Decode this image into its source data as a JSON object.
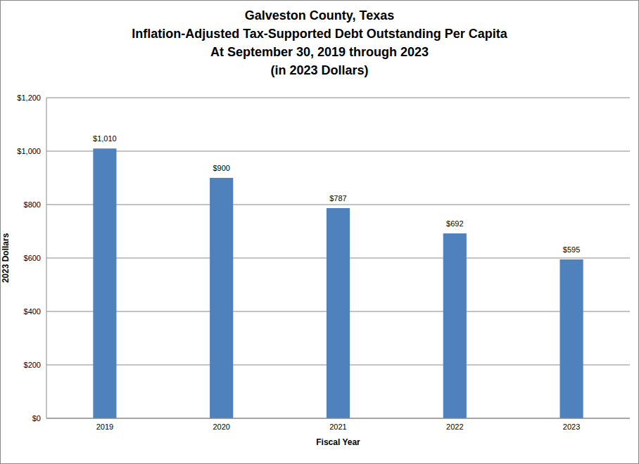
{
  "chart_data": {
    "type": "bar",
    "title": "Galveston County, Texas\nInflation-Adjusted Tax-Supported Debt Outstanding Per Capita\nAt September 30, 2019 through 2023\n(in 2023 Dollars)",
    "x_label": "Fiscal Year",
    "y_label": "2023 Dollars",
    "categories": [
      "2019",
      "2020",
      "2021",
      "2022",
      "2023"
    ],
    "values": [
      1010,
      900,
      787,
      692,
      595
    ],
    "value_labels": [
      "$1,010",
      "$900",
      "$787",
      "$692",
      "$595"
    ],
    "color": "#4f81bd",
    "ylim": [
      0,
      1200
    ],
    "yticks": [
      {
        "value": 0,
        "label": "$0"
      },
      {
        "value": 200,
        "label": "$200"
      },
      {
        "value": 400,
        "label": "$400"
      },
      {
        "value": 600,
        "label": "$600"
      },
      {
        "value": 800,
        "label": "$800"
      },
      {
        "value": 1000,
        "label": "$1,000"
      },
      {
        "value": 1200,
        "label": "$1,200"
      }
    ],
    "grid": true,
    "data_labels": true
  }
}
